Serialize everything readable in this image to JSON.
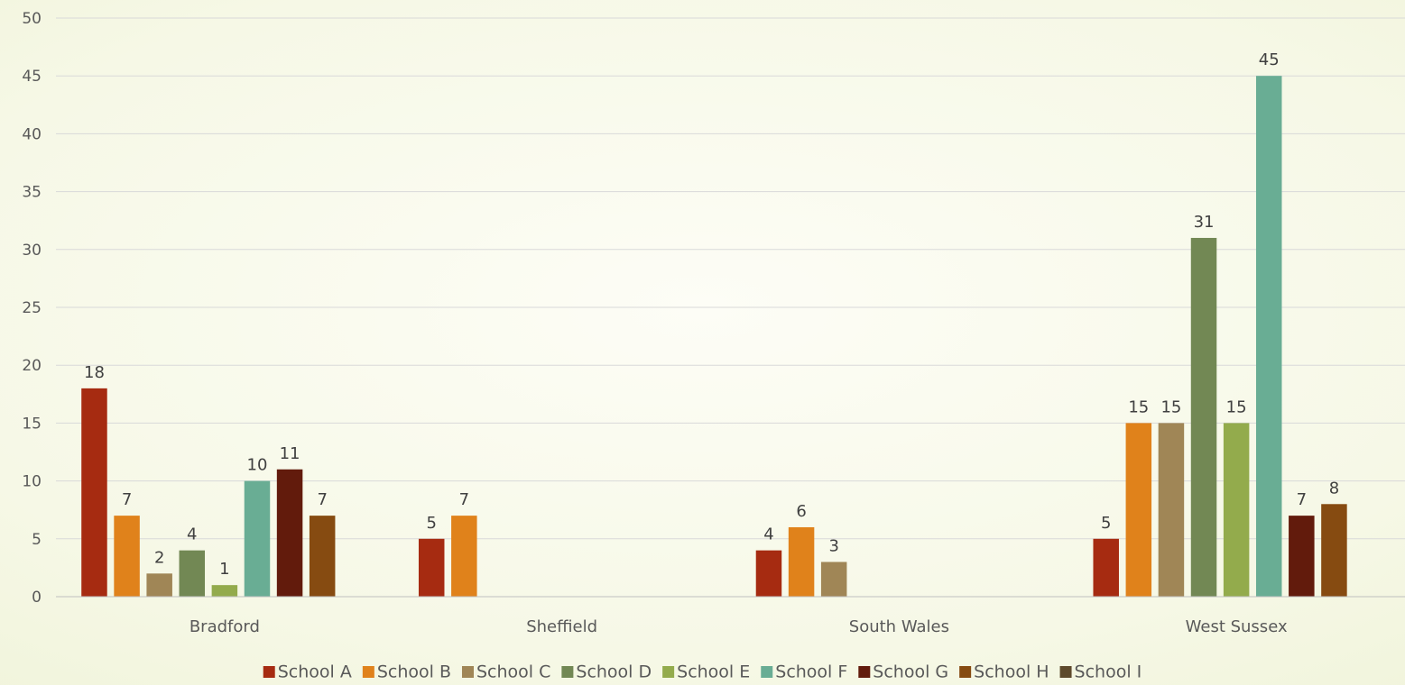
{
  "chart_data": {
    "type": "bar",
    "categories": [
      "Bradford",
      "Sheffield",
      "South Wales",
      "West Sussex"
    ],
    "series": [
      {
        "name": "School A",
        "color": "#a62b11",
        "values": [
          18,
          5,
          4,
          5
        ]
      },
      {
        "name": "School B",
        "color": "#e0821b",
        "values": [
          7,
          7,
          6,
          15
        ]
      },
      {
        "name": "School C",
        "color": "#a08656",
        "values": [
          2,
          null,
          3,
          15
        ]
      },
      {
        "name": "School D",
        "color": "#728854",
        "values": [
          4,
          null,
          null,
          31
        ]
      },
      {
        "name": "School E",
        "color": "#93ab4c",
        "values": [
          1,
          null,
          null,
          15
        ]
      },
      {
        "name": "School F",
        "color": "#69ad94",
        "values": [
          10,
          null,
          null,
          45
        ]
      },
      {
        "name": "School G",
        "color": "#621b0c",
        "values": [
          11,
          null,
          null,
          7
        ]
      },
      {
        "name": "School H",
        "color": "#864b11",
        "values": [
          7,
          null,
          null,
          8
        ]
      },
      {
        "name": "School I",
        "color": "#5e4a2c",
        "values": [
          null,
          null,
          null,
          null
        ]
      }
    ],
    "y_ticks": [
      "0",
      "5",
      "10",
      "15",
      "20",
      "25",
      "30",
      "35",
      "40",
      "45",
      "50"
    ],
    "ylim": [
      0,
      50
    ],
    "grid": true,
    "legend_position": "bottom",
    "data_labels": true
  }
}
